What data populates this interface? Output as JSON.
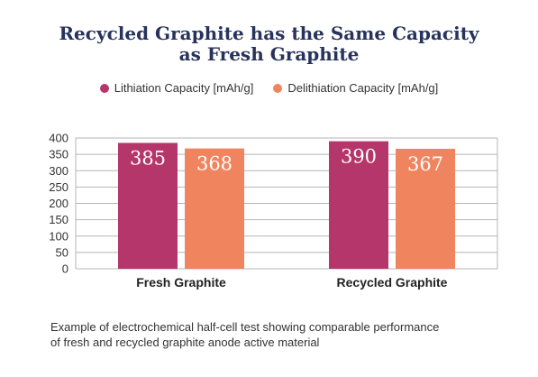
{
  "chart_data": {
    "type": "bar",
    "title_line1": "Recycled Graphite has the Same Capacity",
    "title_line2": "as Fresh Graphite",
    "categories": [
      "Fresh Graphite",
      "Recycled Graphite"
    ],
    "series": [
      {
        "name": "Lithiation Capacity [mAh/g]",
        "values": [
          385,
          390
        ],
        "color": "#b5366a"
      },
      {
        "name": "Delithiation Capacity [mAh/g]",
        "values": [
          368,
          367
        ],
        "color": "#f0845f"
      }
    ],
    "ylim": [
      0,
      400
    ],
    "yticks": [
      0,
      50,
      100,
      150,
      200,
      250,
      300,
      350,
      400
    ],
    "grid": true,
    "legend_position": "top"
  },
  "caption_line1": "Example of electrochemical half-cell test showing comparable performance",
  "caption_line2": "of fresh and recycled graphite anode active material"
}
